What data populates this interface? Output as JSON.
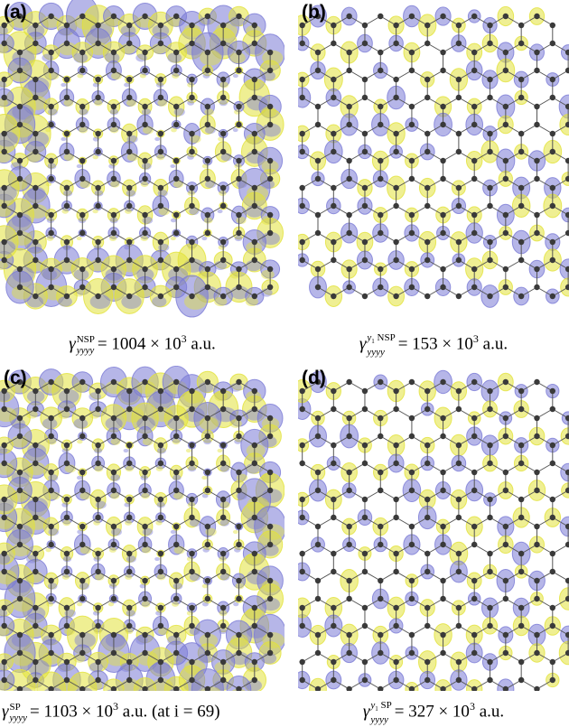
{
  "panels": [
    {
      "label": "(a)",
      "caption": {
        "symbol": "γ",
        "sub": "yyyy",
        "sup": "NSP",
        "value": "= 1004 × 10",
        "exp": "3",
        "unit": "a.u."
      }
    },
    {
      "label": "(b)",
      "caption": {
        "symbol": "γ",
        "sub": "yyyy",
        "sup_var": "y",
        "sup_var_sub": "1",
        "sup": "NSP",
        "value": "= 153 × 10",
        "exp": "3",
        "unit": "a.u."
      }
    },
    {
      "label": "(c)",
      "caption": {
        "symbol": "γ",
        "sub": "yyyy",
        "sup": "SP",
        "value": "= 1103 × 10",
        "exp": "3",
        "unit": "a.u.",
        "note": "(at i = 69)"
      }
    },
    {
      "label": "(d)",
      "caption": {
        "symbol": "γ",
        "sub": "yyyy",
        "sup_var": "y",
        "sup_var_sub": "1",
        "sup": "SP",
        "value": "= 327 × 10",
        "exp": "3",
        "unit": "a.u."
      }
    }
  ]
}
